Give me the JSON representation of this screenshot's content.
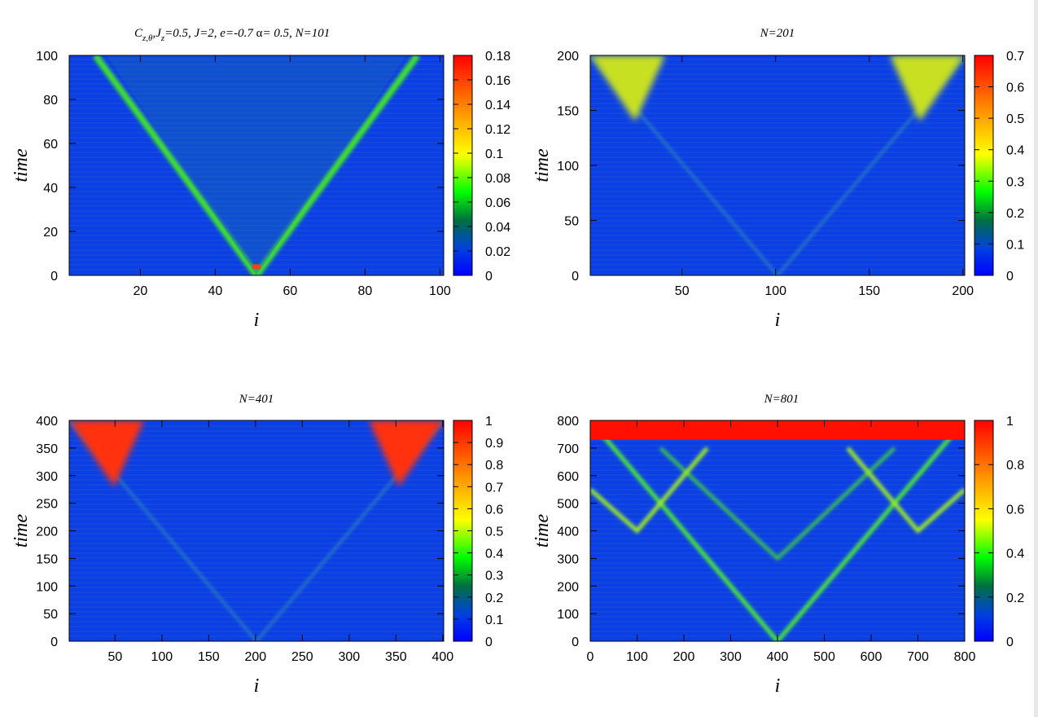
{
  "chart_data": [
    {
      "type": "heatmap",
      "title": "C_{z,θ},J_z=0.5,  J=2, e=-0.7 α= 0.5, N=101",
      "title_parts": {
        "c": "C",
        "sub1": "z,θ",
        "j": ",J",
        "sub2": "z",
        "rest": "=0.5,  J=2, e=-0.7 ",
        "alpha": "α",
        "tail": "= 0.5, N=101"
      },
      "xlabel": "i",
      "ylabel": "time",
      "N": 101,
      "xlim": [
        1,
        101
      ],
      "ylim": [
        0,
        100
      ],
      "xticks": [
        20,
        40,
        60,
        80,
        100
      ],
      "yticks": [
        0,
        20,
        40,
        60,
        80,
        100
      ],
      "cbar_ticks": [
        0,
        0.02,
        0.04,
        0.06,
        0.08,
        0.1,
        0.12,
        0.14,
        0.16,
        0.18
      ],
      "cbar_tick_labels": [
        "0",
        "0.02",
        "0.04",
        "0.06",
        "0.08",
        "0.1",
        "0.12",
        "0.14",
        "0.16",
        "0.18"
      ],
      "cbar_range": [
        0,
        0.18
      ],
      "center_site": 51,
      "light_cone_speed": 0.45,
      "description_values": {
        "peak_at_origin": 0.16,
        "front_value": 0.06,
        "background": 0.015
      }
    },
    {
      "type": "heatmap",
      "title": "N=201",
      "xlabel": "i",
      "ylabel": "time",
      "N": 201,
      "xlim": [
        1,
        201
      ],
      "ylim": [
        0,
        200
      ],
      "xticks": [
        50,
        100,
        150,
        200
      ],
      "yticks": [
        0,
        50,
        100,
        150,
        200
      ],
      "cbar_ticks": [
        0,
        0.1,
        0.2,
        0.3,
        0.4,
        0.5,
        0.6,
        0.7
      ],
      "cbar_tick_labels": [
        "0",
        "0.1",
        "0.2",
        "0.3",
        "0.4",
        "0.5",
        "0.6",
        "0.7"
      ],
      "cbar_range": [
        0,
        0.7
      ],
      "center_site": 101,
      "light_cone_speed": 0.45,
      "description_values": {
        "edge_max": 0.45,
        "front_value": 0.05,
        "background": 0.02
      }
    },
    {
      "type": "heatmap",
      "title": "N=401",
      "xlabel": "i",
      "ylabel": "time",
      "N": 401,
      "xlim": [
        1,
        401
      ],
      "ylim": [
        0,
        400
      ],
      "xticks": [
        50,
        100,
        150,
        200,
        250,
        300,
        350,
        400
      ],
      "yticks": [
        0,
        50,
        100,
        150,
        200,
        250,
        300,
        350,
        400
      ],
      "cbar_ticks": [
        0,
        0.1,
        0.2,
        0.3,
        0.4,
        0.5,
        0.6,
        0.7,
        0.8,
        0.9,
        1
      ],
      "cbar_tick_labels": [
        "0",
        "0.1",
        "0.2",
        "0.3",
        "0.4",
        "0.5",
        "0.6",
        "0.7",
        "0.8",
        "0.9",
        "1"
      ],
      "cbar_range": [
        0,
        1
      ],
      "center_site": 201,
      "light_cone_speed": 0.45,
      "description_values": {
        "edge_max": 1.0,
        "front_value": 0.08,
        "background": 0.03
      }
    },
    {
      "type": "heatmap",
      "title": "N=801",
      "xlabel": "i",
      "ylabel": "time",
      "N": 801,
      "xlim": [
        0,
        800
      ],
      "ylim": [
        0,
        800
      ],
      "xticks": [
        0,
        100,
        200,
        300,
        400,
        500,
        600,
        700,
        800
      ],
      "yticks": [
        0,
        100,
        200,
        300,
        400,
        500,
        600,
        700,
        800
      ],
      "cbar_ticks": [
        0,
        0.2,
        0.4,
        0.6,
        0.8,
        1
      ],
      "cbar_tick_labels": [
        "0",
        "0.2",
        "0.4",
        "0.6",
        "0.8",
        "1"
      ],
      "cbar_range": [
        0,
        1
      ],
      "center_site": 400,
      "light_cone_speed": 0.45,
      "description_values": {
        "saturated_region_time": 730,
        "front_value": 0.4,
        "background": 0.05
      }
    }
  ],
  "colormap": [
    "#0000ff",
    "#0040d0",
    "#008000",
    "#00ff00",
    "#ffff00",
    "#ff8000",
    "#ff0000"
  ]
}
